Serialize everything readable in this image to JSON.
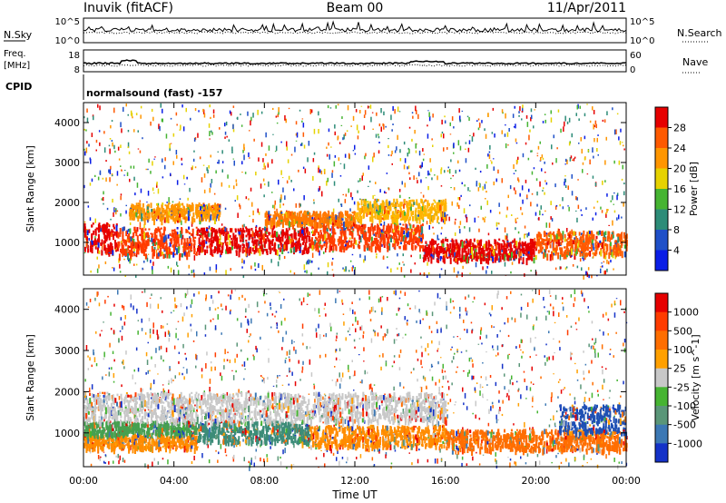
{
  "header": {
    "station": "Inuvik (fitACF)",
    "beam": "Beam 00",
    "date": "11/Apr/2011"
  },
  "panels": {
    "nsky": {
      "left_label": "N.Sky",
      "right_label": "N.Search",
      "tick_top": "10^5",
      "tick_bottom": "10^0"
    },
    "freq": {
      "left_label_top": "Freq.",
      "left_label_bottom": "[MHz]",
      "left_tick_top": "18",
      "left_tick_bottom": "8",
      "right_label": "Nave",
      "right_tick_top": "60",
      "right_tick_bottom": "0"
    },
    "cpid": {
      "label": "CPID",
      "text": "normalsound (fast) -157"
    }
  },
  "chart_data": [
    {
      "type": "heatmap",
      "name": "power",
      "xlabel": "Time UT",
      "ylabel": "Slant Range [km]",
      "xlim": [
        0,
        24
      ],
      "ylim": [
        180,
        4500
      ],
      "x_tick_labels": [
        "00:00",
        "04:00",
        "08:00",
        "12:00",
        "16:00",
        "20:00",
        "00:00"
      ],
      "x_ticks": [
        0,
        4,
        8,
        12,
        16,
        20,
        24
      ],
      "y_ticks": [
        1000,
        2000,
        3000,
        4000
      ],
      "colorbar": {
        "label": "Power [dB]",
        "tick_labels": [
          "4",
          "8",
          "12",
          "16",
          "20",
          "24",
          "28"
        ],
        "colors": [
          "#0a1ee6",
          "#1f50c8",
          "#2d8c78",
          "#46b432",
          "#e6d200",
          "#ff9600",
          "#ff5a00",
          "#e60000"
        ]
      },
      "bands": [
        {
          "t0": 0.0,
          "t1": 1.5,
          "r0": 800,
          "r1": 1500,
          "color": "#e60000"
        },
        {
          "t0": 1.5,
          "t1": 5.0,
          "r0": 700,
          "r1": 1400,
          "color": "#ff3c00"
        },
        {
          "t0": 5.0,
          "t1": 10.0,
          "r0": 800,
          "r1": 1400,
          "color": "#e60000"
        },
        {
          "t0": 10.0,
          "t1": 15.0,
          "r0": 900,
          "r1": 1500,
          "color": "#ff3c00"
        },
        {
          "t0": 15.0,
          "t1": 20.0,
          "r0": 600,
          "r1": 1100,
          "color": "#e60000"
        },
        {
          "t0": 20.0,
          "t1": 24.0,
          "r0": 700,
          "r1": 1300,
          "color": "#ff5a00"
        },
        {
          "t0": 2.0,
          "t1": 6.0,
          "r0": 1600,
          "r1": 2000,
          "color": "#ff9600"
        },
        {
          "t0": 8.0,
          "t1": 12.0,
          "r0": 1500,
          "r1": 1800,
          "color": "#ff7800"
        },
        {
          "t0": 12.0,
          "t1": 16.0,
          "r0": 1600,
          "r1": 2100,
          "color": "#ffb400"
        }
      ]
    },
    {
      "type": "heatmap",
      "name": "velocity",
      "xlabel": "Time UT",
      "ylabel": "Slant Range [km]",
      "xlim": [
        0,
        24
      ],
      "ylim": [
        180,
        4500
      ],
      "x_tick_labels": [
        "00:00",
        "04:00",
        "08:00",
        "12:00",
        "16:00",
        "20:00",
        "00:00"
      ],
      "x_ticks": [
        0,
        4,
        8,
        12,
        16,
        20,
        24
      ],
      "y_ticks": [
        1000,
        2000,
        3000,
        4000
      ],
      "colorbar": {
        "label": "Velocity [m s^-1]",
        "tick_labels": [
          "1000",
          "500",
          "100",
          "25",
          "-25",
          "-100",
          "-500",
          "-1000"
        ],
        "colors": [
          "#1432c8",
          "#3c78b4",
          "#5a9678",
          "#46b432",
          "#c8c8c8",
          "#ffa000",
          "#ff6e00",
          "#ff3c00",
          "#e60000"
        ]
      },
      "bands": [
        {
          "t0": 0.0,
          "t1": 5.0,
          "r0": 650,
          "r1": 1000,
          "color": "#ff8c00"
        },
        {
          "t0": 0.0,
          "t1": 5.0,
          "r0": 1000,
          "r1": 1300,
          "color": "#46a050"
        },
        {
          "t0": 5.0,
          "t1": 10.0,
          "r0": 800,
          "r1": 1300,
          "color": "#3c8c78"
        },
        {
          "t0": 10.0,
          "t1": 16.0,
          "r0": 700,
          "r1": 1200,
          "color": "#ff8c00"
        },
        {
          "t0": 16.0,
          "t1": 24.0,
          "r0": 600,
          "r1": 1100,
          "color": "#ff6e00"
        },
        {
          "t0": 0.0,
          "t1": 16.0,
          "r0": 1300,
          "r1": 2000,
          "color": "#c8c8c8"
        },
        {
          "t0": 21.0,
          "t1": 24.0,
          "r0": 1000,
          "r1": 1700,
          "color": "#1e50b4"
        }
      ]
    }
  ]
}
